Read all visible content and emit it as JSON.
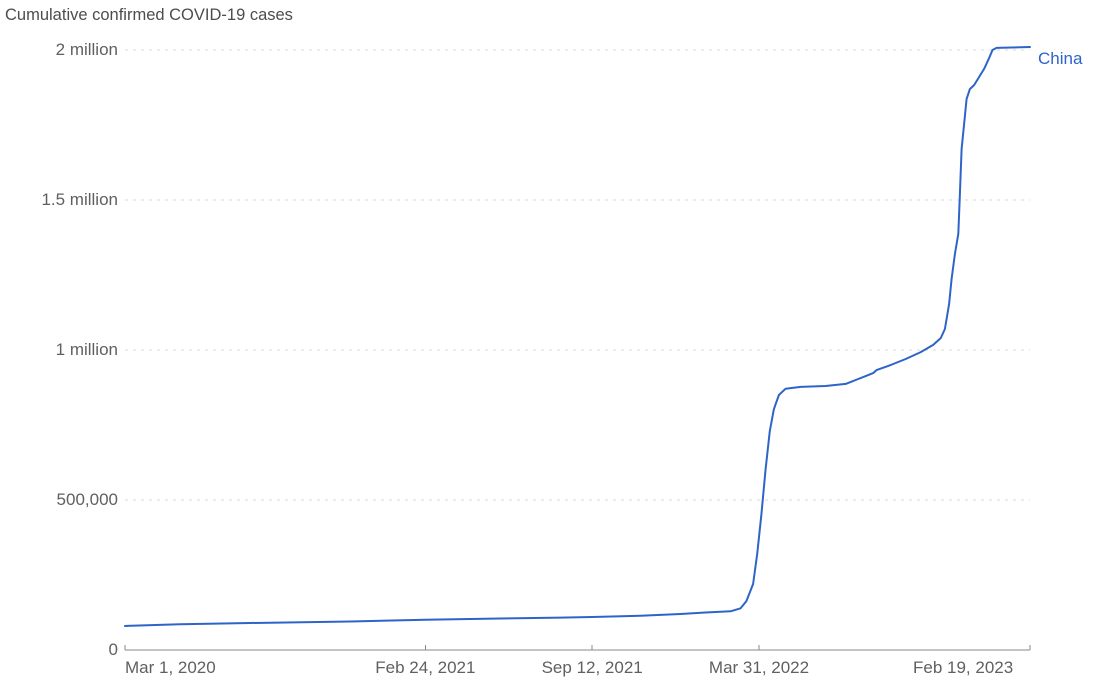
{
  "chart_data": {
    "type": "line",
    "title": "Cumulative confirmed COVID-19 cases",
    "xlabel": "",
    "ylabel": "",
    "x_domain": [
      "2020-03-01",
      "2023-02-19"
    ],
    "ylim": [
      0,
      2000000
    ],
    "grid": "horizontal-dashed",
    "legend_position": "line-end-right",
    "y_ticks": [
      {
        "value": 0,
        "label": "0"
      },
      {
        "value": 500000,
        "label": "500,000"
      },
      {
        "value": 1000000,
        "label": "1 million"
      },
      {
        "value": 1500000,
        "label": "1.5 million"
      },
      {
        "value": 2000000,
        "label": "2 million"
      }
    ],
    "x_ticks": [
      {
        "date": "2020-03-01",
        "label": "Mar 1, 2020"
      },
      {
        "date": "2021-02-24",
        "label": "Feb 24, 2021"
      },
      {
        "date": "2021-09-12",
        "label": "Sep 12, 2021"
      },
      {
        "date": "2022-03-31",
        "label": "Mar 31, 2022"
      },
      {
        "date": "2023-02-19",
        "label": "Feb 19, 2023"
      }
    ],
    "series": [
      {
        "name": "China",
        "color": "#2e64c8",
        "points": [
          [
            "2020-03-01",
            80000
          ],
          [
            "2020-05-06",
            86000
          ],
          [
            "2020-07-29",
            90000
          ],
          [
            "2020-11-26",
            95000
          ],
          [
            "2021-02-24",
            101000
          ],
          [
            "2021-05-25",
            105000
          ],
          [
            "2021-08-05",
            108000
          ],
          [
            "2021-09-12",
            110000
          ],
          [
            "2021-11-09",
            114000
          ],
          [
            "2021-12-27",
            120000
          ],
          [
            "2022-01-26",
            125000
          ],
          [
            "2022-02-25",
            129000
          ],
          [
            "2022-03-09",
            139000
          ],
          [
            "2022-03-16",
            163000
          ],
          [
            "2022-03-24",
            220000
          ],
          [
            "2022-03-29",
            320000
          ],
          [
            "2022-04-03",
            452000
          ],
          [
            "2022-04-08",
            603000
          ],
          [
            "2022-04-13",
            730000
          ],
          [
            "2022-04-18",
            803000
          ],
          [
            "2022-04-24",
            850000
          ],
          [
            "2022-05-02",
            871000
          ],
          [
            "2022-05-20",
            877000
          ],
          [
            "2022-06-19",
            880000
          ],
          [
            "2022-07-13",
            887000
          ],
          [
            "2022-07-25",
            900000
          ],
          [
            "2022-08-06",
            913000
          ],
          [
            "2022-08-15",
            923000
          ],
          [
            "2022-08-19",
            933000
          ],
          [
            "2022-09-05",
            950000
          ],
          [
            "2022-09-23",
            970000
          ],
          [
            "2022-10-11",
            993000
          ],
          [
            "2022-10-26",
            1017000
          ],
          [
            "2022-11-04",
            1040000
          ],
          [
            "2022-11-09",
            1070000
          ],
          [
            "2022-11-14",
            1153000
          ],
          [
            "2022-11-17",
            1237000
          ],
          [
            "2022-11-21",
            1320000
          ],
          [
            "2022-11-25",
            1387000
          ],
          [
            "2022-11-27",
            1520000
          ],
          [
            "2022-11-29",
            1670000
          ],
          [
            "2022-12-02",
            1753000
          ],
          [
            "2022-12-05",
            1837000
          ],
          [
            "2022-12-09",
            1870000
          ],
          [
            "2022-12-14",
            1883000
          ],
          [
            "2022-12-20",
            1910000
          ],
          [
            "2022-12-26",
            1937000
          ],
          [
            "2023-01-01",
            1973000
          ],
          [
            "2023-01-05",
            2000000
          ],
          [
            "2023-01-10",
            2007000
          ],
          [
            "2023-02-19",
            2010000
          ]
        ]
      }
    ]
  }
}
